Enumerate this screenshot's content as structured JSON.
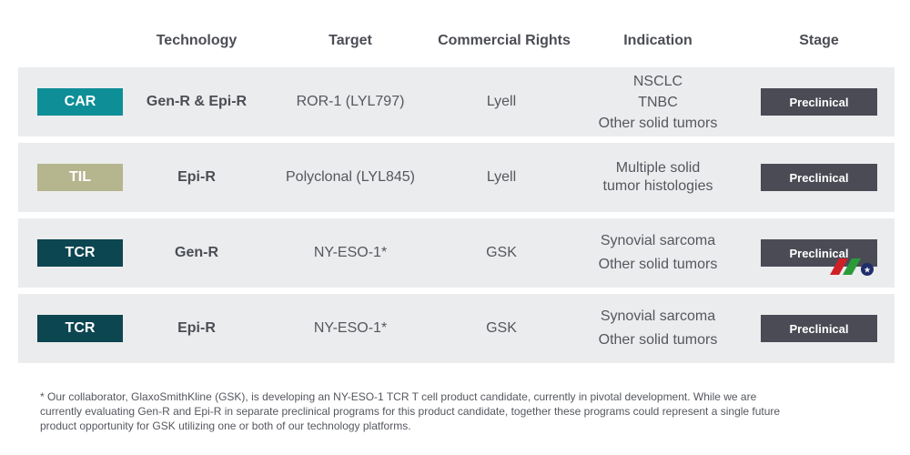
{
  "header": {
    "technology": "Technology",
    "target": "Target",
    "rights": "Commercial Rights",
    "indication": "Indication",
    "stage": "Stage"
  },
  "rows": [
    {
      "type": "CAR",
      "type_color": "#0e8e97",
      "technology": "Gen-R & Epi-R",
      "target": "ROR-1 (LYL797)",
      "rights": "Lyell",
      "indication": [
        "NSCLC",
        "TNBC",
        "Other solid tumors"
      ],
      "stage": "Preclinical"
    },
    {
      "type": "TIL",
      "type_color": "#b5b58e",
      "technology": "Epi-R",
      "target": "Polyclonal (LYL845)",
      "rights": "Lyell",
      "indication": [
        "Multiple solid",
        "tumor histologies"
      ],
      "stage": "Preclinical"
    },
    {
      "type": "TCR",
      "type_color": "#0c4651",
      "technology": "Gen-R",
      "target": "NY-ESO-1*",
      "rights": "GSK",
      "indication": [
        "Synovial sarcoma",
        "Other solid tumors"
      ],
      "stage": "Preclinical"
    },
    {
      "type": "TCR",
      "type_color": "#0c4651",
      "technology": "Epi-R",
      "target": "NY-ESO-1*",
      "rights": "GSK",
      "indication": [
        "Synovial sarcoma",
        "Other solid tumors"
      ],
      "stage": "Preclinical"
    }
  ],
  "footnote": "* Our collaborator, GlaxoSmithKline (GSK), is developing an NY-ESO-1 TCR T cell product candidate, currently in pivotal development. While we are currently evaluating Gen-R and Epi-R in separate preclinical programs for this product candidate, together these programs could represent a single future product opportunity for GSK utilizing one or both of our technology platforms.",
  "logo": {
    "icon": "watermark-logo-icon",
    "colors": [
      "#cf2027",
      "#2b9b3a",
      "#1f2d6b"
    ]
  }
}
